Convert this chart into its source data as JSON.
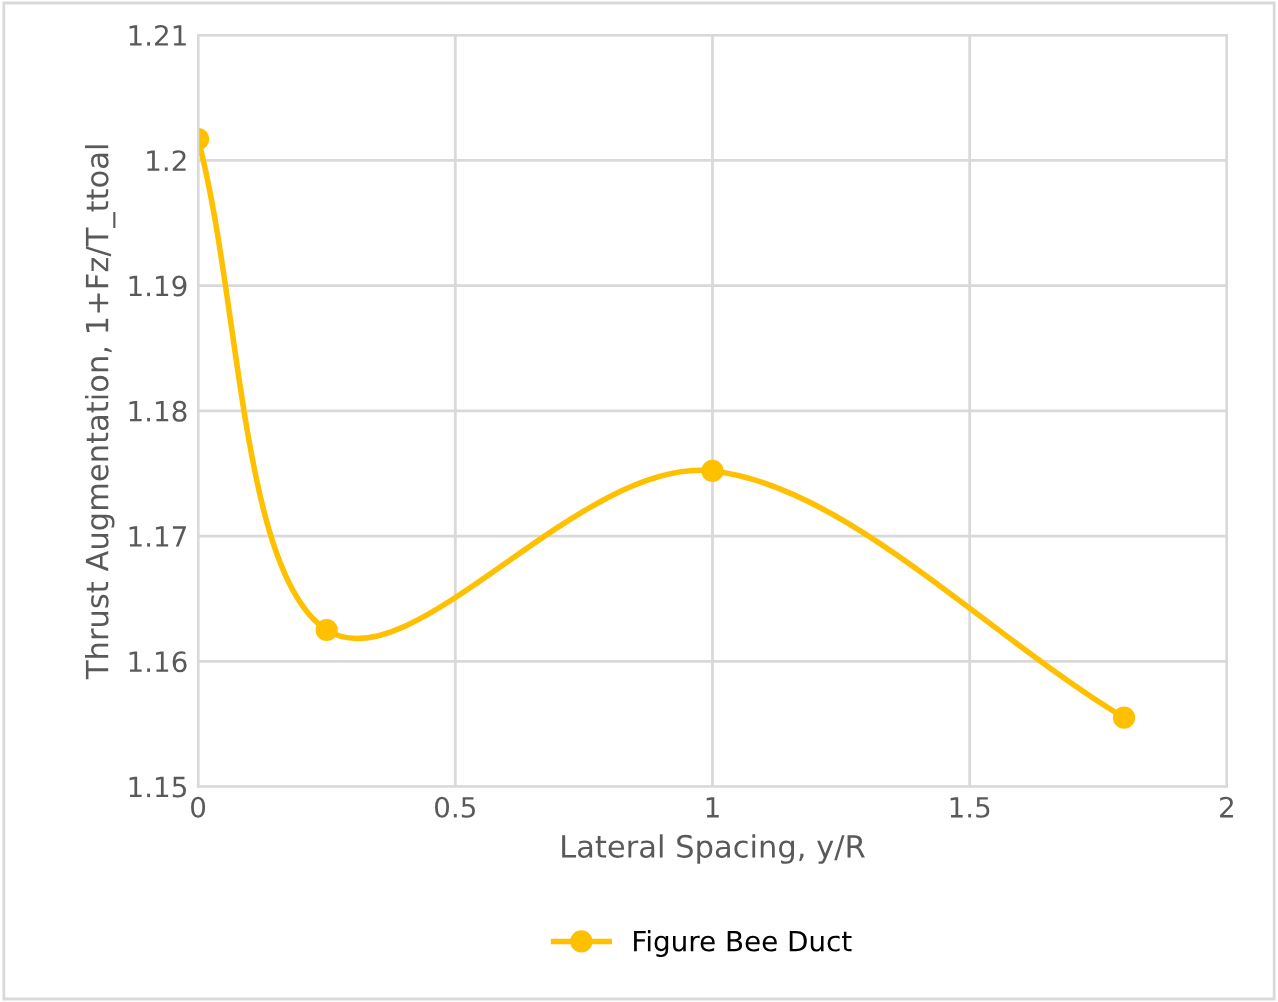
{
  "chart_data": {
    "type": "line",
    "xlabel": "Lateral Spacing, y/R",
    "ylabel": "Thrust Augmentation, 1+Fz/T_ttoal",
    "series": [
      {
        "name": "Figure Bee Duct",
        "color": "#ffc000",
        "x": [
          0,
          0.25,
          1,
          1.8
        ],
        "values": [
          1.2017,
          1.1625,
          1.1752,
          1.1555
        ]
      }
    ],
    "xlim": [
      0,
      2
    ],
    "xticks": [
      0,
      0.5,
      1,
      1.5,
      2
    ],
    "ylim": [
      1.15,
      1.21
    ],
    "yticks": [
      1.15,
      1.16,
      1.17,
      1.18,
      1.19,
      1.2,
      1.21
    ],
    "grid": true,
    "legend": "bottom",
    "marker": "circle",
    "line_style": "solid"
  }
}
